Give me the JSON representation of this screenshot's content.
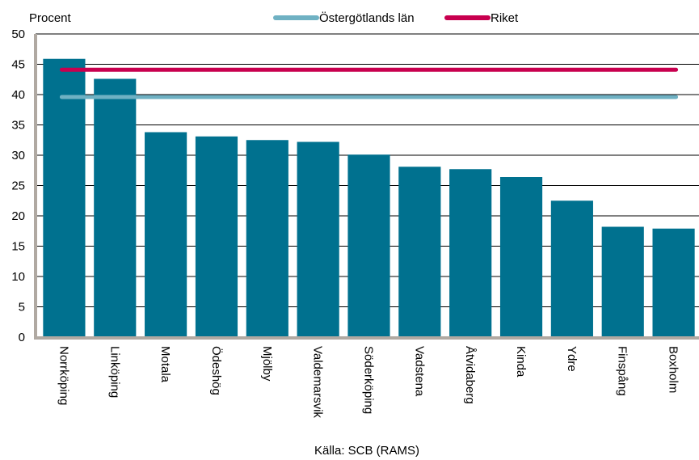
{
  "chart_data": {
    "type": "bar",
    "ylabel": "Procent",
    "ylim": [
      0,
      50
    ],
    "yticks": [
      0,
      5,
      10,
      15,
      20,
      25,
      30,
      35,
      40,
      45,
      50
    ],
    "grid": true,
    "legend_position": "top-center",
    "categories": [
      "Norrköping",
      "Linköping",
      "Motala",
      "Ödeshög",
      "Mjölby",
      "Valdemarsvik",
      "Söderköping",
      "Vadstena",
      "Åtvidaberg",
      "Kinda",
      "Ydre",
      "Finspång",
      "Boxholm"
    ],
    "series": [
      {
        "values": [
          45.9,
          42.6,
          33.8,
          33.1,
          32.5,
          32.2,
          30.1,
          28.1,
          27.7,
          26.4,
          22.5,
          18.2,
          17.9
        ]
      }
    ],
    "reference_lines": [
      {
        "name": "Östergötlands län",
        "value": 39.6
      },
      {
        "name": "Riket",
        "value": 44.1
      }
    ],
    "source": "Källa: SCB (RAMS)",
    "colors": {
      "bar": "#00718f",
      "ostergotland": "#6fb1c3",
      "riket": "#c8004f",
      "grid": "#000000",
      "axis": "#b0a9a2"
    }
  }
}
